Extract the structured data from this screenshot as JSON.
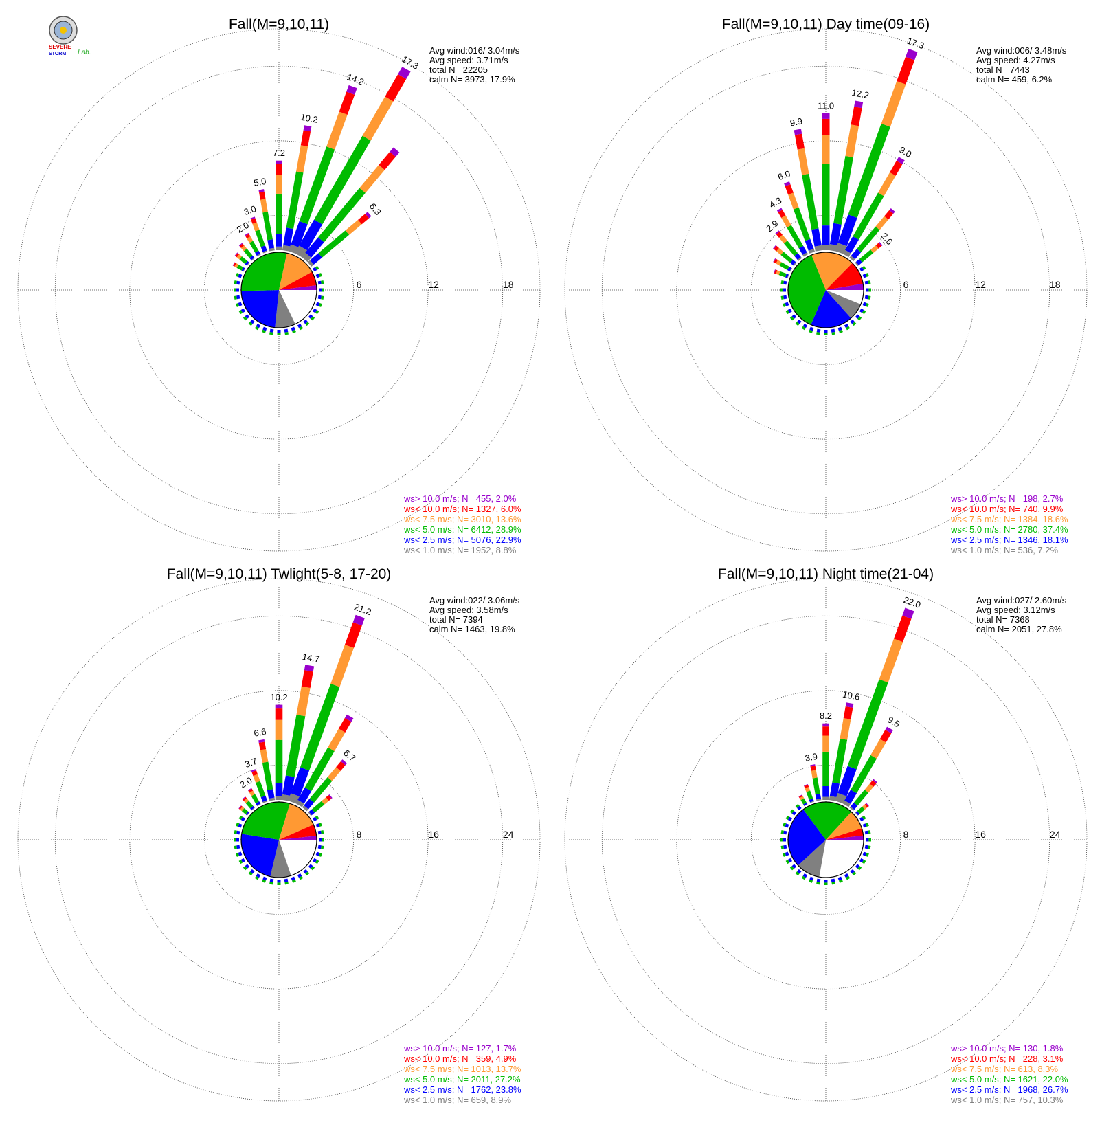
{
  "logo": {
    "text_top": "SEVERE",
    "text_bottom": "STORM",
    "text_lab": "Lab."
  },
  "chart_data": [
    {
      "type": "polar-bar",
      "title": "Fall(M=9,10,11)",
      "ring_ticks": [
        "6",
        "12",
        "18"
      ],
      "rmax": 18,
      "stats": [
        "Avg wind:016/ 3.04m/s",
        "Avg speed: 3.71m/s",
        "total N=      22205",
        "calm N=   3973,  17.9%"
      ],
      "legend": [
        {
          "label": "ws> 10.0 m/s; N=    455,  2.0%",
          "color": "#9900cc"
        },
        {
          "label": "ws< 10.0 m/s; N=   1327,  6.0%",
          "color": "#ff0000"
        },
        {
          "label": "ws<  7.5 m/s; N=   3010, 13.6%",
          "color": "#ff9933"
        },
        {
          "label": "ws<  5.0 m/s; N=   6412, 28.9%",
          "color": "#00bb00"
        },
        {
          "label": "ws<  2.5 m/s; N=   5076, 22.9%",
          "color": "#0000ff"
        },
        {
          "label": "ws<  1.0 m/s; N=   1952,  8.8%",
          "color": "#808080"
        }
      ],
      "pie": [
        17.9,
        8.8,
        22.9,
        28.9,
        13.6,
        6.0,
        2.0
      ],
      "bars": [
        {
          "dir": 300,
          "total": 1.0
        },
        {
          "dir": 310,
          "total": 1.3
        },
        {
          "dir": 320,
          "total": 1.6
        },
        {
          "dir": 330,
          "total": 2.0,
          "label": "2.0"
        },
        {
          "dir": 340,
          "total": 3.0,
          "label": "3.0"
        },
        {
          "dir": 350,
          "total": 5.0,
          "label": "5.0"
        },
        {
          "dir": 0,
          "total": 7.2,
          "label": "7.2"
        },
        {
          "dir": 10,
          "total": 10.2,
          "label": "10.2"
        },
        {
          "dir": 20,
          "total": 14.2,
          "label": "14.2"
        },
        {
          "dir": 30,
          "total": 17.3,
          "label": "17.3"
        },
        {
          "dir": 40,
          "total": 11.5
        },
        {
          "dir": 50,
          "total": 6.3,
          "label": "6.3"
        }
      ]
    },
    {
      "type": "polar-bar",
      "title": "Fall(M=9,10,11) Day time(09-16)",
      "ring_ticks": [
        "6",
        "12",
        "18"
      ],
      "rmax": 18,
      "stats": [
        "Avg wind:006/ 3.48m/s",
        "Avg speed: 4.27m/s",
        "total N=        7443",
        "calm N=    459,   6.2%"
      ],
      "legend": [
        {
          "label": "ws> 10.0 m/s; N=    198,  2.7%",
          "color": "#9900cc"
        },
        {
          "label": "ws< 10.0 m/s; N=    740,  9.9%",
          "color": "#ff0000"
        },
        {
          "label": "ws<  7.5 m/s; N=   1384, 18.6%",
          "color": "#ff9933"
        },
        {
          "label": "ws<  5.0 m/s; N=   2780, 37.4%",
          "color": "#00bb00"
        },
        {
          "label": "ws<  2.5 m/s; N=   1346, 18.1%",
          "color": "#0000ff"
        },
        {
          "label": "ws<  1.0 m/s; N=    536,  7.2%",
          "color": "#808080"
        }
      ],
      "pie": [
        6.2,
        7.2,
        18.1,
        37.4,
        18.6,
        9.9,
        2.7
      ],
      "bars": [
        {
          "dir": 290,
          "total": 1.2
        },
        {
          "dir": 300,
          "total": 1.6
        },
        {
          "dir": 310,
          "total": 2.2
        },
        {
          "dir": 320,
          "total": 2.9,
          "label": "2.9"
        },
        {
          "dir": 330,
          "total": 4.3,
          "label": "4.3"
        },
        {
          "dir": 340,
          "total": 6.0,
          "label": "6.0"
        },
        {
          "dir": 350,
          "total": 9.9,
          "label": "9.9"
        },
        {
          "dir": 0,
          "total": 11.0,
          "label": "11.0"
        },
        {
          "dir": 10,
          "total": 12.2,
          "label": "12.2"
        },
        {
          "dir": 20,
          "total": 17.3,
          "label": "17.3"
        },
        {
          "dir": 30,
          "total": 9.0,
          "label": "9.0"
        },
        {
          "dir": 40,
          "total": 5.2
        },
        {
          "dir": 50,
          "total": 2.6,
          "label": "2.6"
        }
      ]
    },
    {
      "type": "polar-bar",
      "title": "Fall(M=9,10,11) Twlight(5-8, 17-20)",
      "ring_ticks": [
        "8",
        "16",
        "24"
      ],
      "rmax": 24,
      "stats": [
        "Avg wind:022/ 3.06m/s",
        "Avg speed: 3.58m/s",
        "total N=        7394",
        "calm N=   1463,  19.8%"
      ],
      "legend": [
        {
          "label": "ws> 10.0 m/s; N=    127,  1.7%",
          "color": "#9900cc"
        },
        {
          "label": "ws< 10.0 m/s; N=    359,  4.9%",
          "color": "#ff0000"
        },
        {
          "label": "ws<  7.5 m/s; N=   1013, 13.7%",
          "color": "#ff9933"
        },
        {
          "label": "ws<  5.0 m/s; N=   2011, 27.2%",
          "color": "#00bb00"
        },
        {
          "label": "ws<  2.5 m/s; N=   1762, 23.8%",
          "color": "#0000ff"
        },
        {
          "label": "ws<  1.0 m/s; N=    659,  8.9%",
          "color": "#808080"
        }
      ],
      "pie": [
        19.8,
        8.9,
        23.8,
        27.2,
        13.7,
        4.9,
        1.7
      ],
      "bars": [
        {
          "dir": 310,
          "total": 1.2
        },
        {
          "dir": 320,
          "total": 1.6
        },
        {
          "dir": 330,
          "total": 2.0,
          "label": "2.0"
        },
        {
          "dir": 340,
          "total": 3.7,
          "label": "3.7"
        },
        {
          "dir": 350,
          "total": 6.6,
          "label": "6.6"
        },
        {
          "dir": 0,
          "total": 10.2,
          "label": "10.2"
        },
        {
          "dir": 10,
          "total": 14.7,
          "label": "14.7"
        },
        {
          "dir": 20,
          "total": 21.2,
          "label": "21.2"
        },
        {
          "dir": 30,
          "total": 11.0
        },
        {
          "dir": 40,
          "total": 6.7,
          "label": "6.7"
        },
        {
          "dir": 50,
          "total": 3.0
        }
      ]
    },
    {
      "type": "polar-bar",
      "title": "Fall(M=9,10,11) Night time(21-04)",
      "ring_ticks": [
        "8",
        "16",
        "24"
      ],
      "rmax": 24,
      "stats": [
        "Avg wind:027/ 2.60m/s",
        "Avg speed: 3.12m/s",
        "total N=        7368",
        "calm N=   2051,  27.8%"
      ],
      "legend": [
        {
          "label": "ws> 10.0 m/s; N=    130,  1.8%",
          "color": "#9900cc"
        },
        {
          "label": "ws< 10.0 m/s; N=    228,  3.1%",
          "color": "#ff0000"
        },
        {
          "label": "ws<  7.5 m/s; N=    613,  8.3%",
          "color": "#ff9933"
        },
        {
          "label": "ws<  5.0 m/s; N=   1621, 22.0%",
          "color": "#00bb00"
        },
        {
          "label": "ws<  2.5 m/s; N=   1968, 26.7%",
          "color": "#0000ff"
        },
        {
          "label": "ws<  1.0 m/s; N=    757, 10.3%",
          "color": "#808080"
        }
      ],
      "pie": [
        27.8,
        10.3,
        26.7,
        22.0,
        8.3,
        3.1,
        1.8
      ],
      "bars": [
        {
          "dir": 330,
          "total": 1.2
        },
        {
          "dir": 340,
          "total": 2.0
        },
        {
          "dir": 350,
          "total": 3.9,
          "label": "3.9"
        },
        {
          "dir": 0,
          "total": 8.2,
          "label": "8.2"
        },
        {
          "dir": 10,
          "total": 10.6,
          "label": "10.6"
        },
        {
          "dir": 20,
          "total": 22.0,
          "label": "22.0"
        },
        {
          "dir": 30,
          "total": 9.5,
          "label": "9.5"
        },
        {
          "dir": 40,
          "total": 4.0
        },
        {
          "dir": 50,
          "total": 1.6
        }
      ]
    }
  ]
}
